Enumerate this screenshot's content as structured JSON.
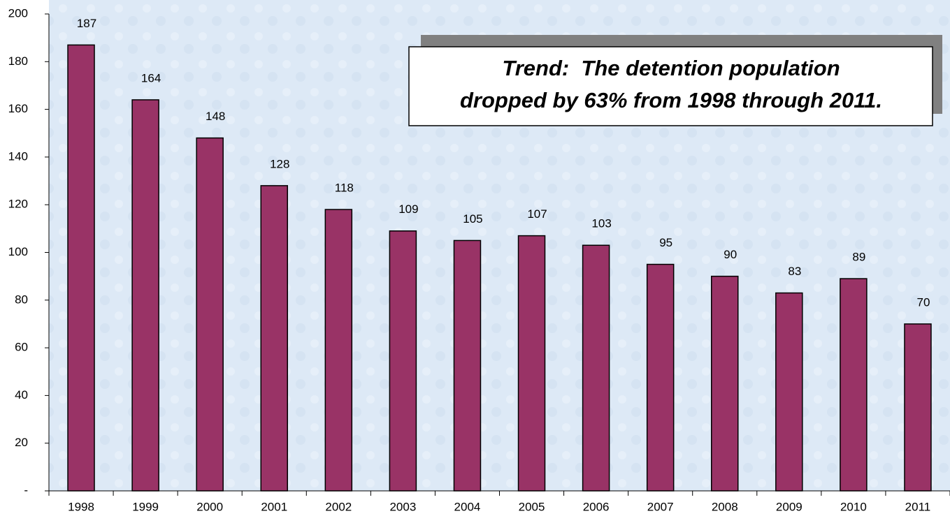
{
  "chart_data": {
    "type": "bar",
    "categories": [
      "1998",
      "1999",
      "2000",
      "2001",
      "2002",
      "2003",
      "2004",
      "2005",
      "2006",
      "2007",
      "2008",
      "2009",
      "2010",
      "2011"
    ],
    "values": [
      187,
      164,
      148,
      128,
      118,
      109,
      105,
      107,
      103,
      95,
      90,
      83,
      89,
      70
    ],
    "color": "#993366",
    "ylim": [
      0,
      200
    ],
    "yticks": [
      {
        "value": 0,
        "label": "-"
      },
      20,
      40,
      60,
      80,
      100,
      120,
      140,
      160,
      180,
      200
    ],
    "annotation": [
      "Trend:  The detention population",
      "dropped by 63% from 1998 through 2011."
    ]
  }
}
